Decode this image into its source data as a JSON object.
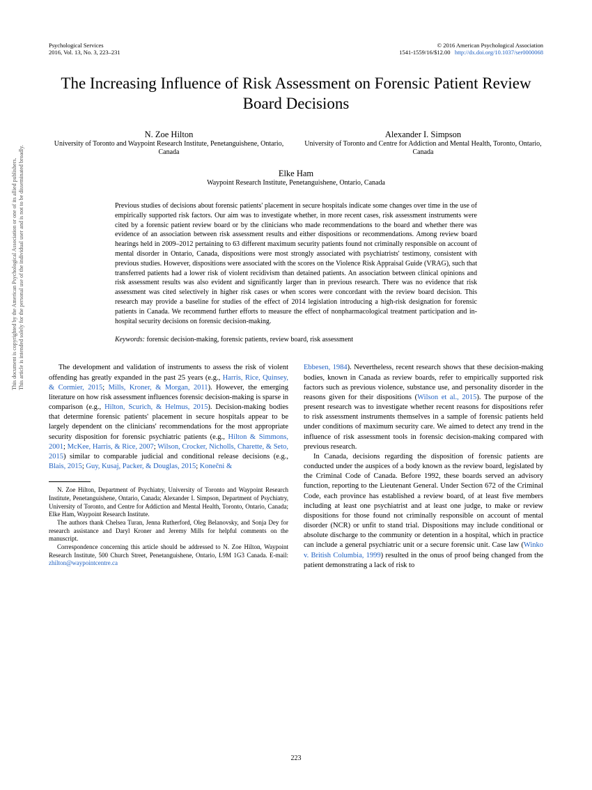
{
  "header": {
    "journal": "Psychological Services",
    "issue": "2016, Vol. 13, No. 3, 223–231",
    "copyright": "© 2016 American Psychological Association",
    "issn_price": "1541-1559/16/$12.00",
    "doi": "http://dx.doi.org/10.1037/ser0000068"
  },
  "title": "The Increasing Influence of Risk Assessment on Forensic Patient Review Board Decisions",
  "authors": [
    {
      "name": "N. Zoe Hilton",
      "affil": "University of Toronto and Waypoint Research Institute, Penetanguishene, Ontario, Canada"
    },
    {
      "name": "Alexander I. Simpson",
      "affil": "University of Toronto and Centre for Addiction and Mental Health, Toronto, Ontario, Canada"
    }
  ],
  "author_center": {
    "name": "Elke Ham",
    "affil": "Waypoint Research Institute, Penetanguishene, Ontario, Canada"
  },
  "abstract": "Previous studies of decisions about forensic patients' placement in secure hospitals indicate some changes over time in the use of empirically supported risk factors. Our aim was to investigate whether, in more recent cases, risk assessment instruments were cited by a forensic patient review board or by the clinicians who made recommendations to the board and whether there was evidence of an association between risk assessment results and either dispositions or recommendations. Among review board hearings held in 2009–2012 pertaining to 63 different maximum security patients found not criminally responsible on account of mental disorder in Ontario, Canada, dispositions were most strongly associated with psychiatrists' testimony, consistent with previous studies. However, dispositions were associated with the scores on the Violence Risk Appraisal Guide (VRAG), such that transferred patients had a lower risk of violent recidivism than detained patients. An association between clinical opinions and risk assessment results was also evident and significantly larger than in previous research. There was no evidence that risk assessment was cited selectively in higher risk cases or when scores were concordant with the review board decision. This research may provide a baseline for studies of the effect of 2014 legislation introducing a high-risk designation for forensic patients in Canada. We recommend further efforts to measure the effect of nonpharmacological treatment participation and in-hospital security decisions on forensic decision-making.",
  "keywords_label": "Keywords:",
  "keywords": "forensic decision-making, forensic patients, review board, risk assessment",
  "body": {
    "left": {
      "p1a": "The development and validation of instruments to assess the risk of violent offending has greatly expanded in the past 25 years (e.g., ",
      "c1": "Harris, Rice, Quinsey, & Cormier, 2015",
      "p1b": "; ",
      "c2": "Mills, Kroner, & Morgan, 2011",
      "p1c": "). However, the emerging literature on how risk assessment influences forensic decision-making is sparse in comparison (e.g., ",
      "c3": "Hilton, Scurich, & Helmus, 2015",
      "p1d": "). Decision-making bodies that determine forensic patients' placement in secure hospitals appear to be largely dependent on the clinicians' recommendations for the most appropriate security disposition for forensic psychiatric patients (e.g., ",
      "c4": "Hilton & Simmons, 2001",
      "p1e": "; ",
      "c5": "McKee, Harris, & Rice, 2007",
      "p1f": "; ",
      "c6": "Wilson, Crocker, Nicholls, Charette, & Seto, 2015",
      "p1g": ") similar to comparable judicial and conditional release decisions (e.g., ",
      "c7": "Blais, 2015",
      "p1h": "; ",
      "c8": "Guy, Kusaj, Packer, & Douglas, 2015",
      "p1i": "; ",
      "c9": "Konečni &"
    },
    "right": {
      "p1a": "Ebbesen, 1984",
      "p1b": "). Nevertheless, recent research shows that these decision-making bodies, known in Canada as review boards, refer to empirically supported risk factors such as previous violence, substance use, and personality disorder in the reasons given for their dispositions (",
      "c1": "Wilson et al., 2015",
      "p1c": "). The purpose of the present research was to investigate whether recent reasons for dispositions refer to risk assessment instruments themselves in a sample of forensic patients held under conditions of maximum security care. We aimed to detect any trend in the influence of risk assessment tools in forensic decision-making compared with previous research.",
      "p2a": "In Canada, decisions regarding the disposition of forensic patients are conducted under the auspices of a body known as the review board, legislated by the Criminal Code of Canada. Before 1992, these boards served an advisory function, reporting to the Lieutenant General. Under Section 672 of the Criminal Code, each province has established a review board, of at least five members including at least one psychiatrist and at least one judge, to make or review dispositions for those found not criminally responsible on account of mental disorder (NCR) or unfit to stand trial. Dispositions may include conditional or absolute discharge to the community or detention in a hospital, which in practice can include a general psychiatric unit or a secure forensic unit. Case law (",
      "c2": "Winko v. British Columbia, 1999",
      "p2b": ") resulted in the onus of proof being changed from the patient demonstrating a lack of risk to"
    }
  },
  "footnotes": {
    "f1": "N. Zoe Hilton, Department of Psychiatry, University of Toronto and Waypoint Research Institute, Penetanguishene, Ontario, Canada; Alexander I. Simpson, Department of Psychiatry, University of Toronto, and Centre for Addiction and Mental Health, Toronto, Ontario, Canada; Elke Ham, Waypoint Research Institute.",
    "f2": "The authors thank Chelsea Turan, Jenna Rutherford, Oleg Belanovsky, and Sonja Dey for research assistance and Daryl Kroner and Jeremy Mills for helpful comments on the manuscript.",
    "f3a": "Correspondence concerning this article should be addressed to N. Zoe Hilton, Waypoint Research Institute, 500 Church Street, Penetanguishene, Ontario, L9M 1G3 Canada. E-mail: ",
    "email": "zhilton@waypointcentre.ca"
  },
  "page_number": "223",
  "side_notice": {
    "line1": "This document is copyrighted by the American Psychological Association or one of its allied publishers.",
    "line2": "This article is intended solely for the personal use of the individual user and is not to be disseminated broadly."
  },
  "colors": {
    "link": "#2060c0",
    "text": "#000000",
    "side_text": "#555555",
    "background": "#ffffff"
  }
}
